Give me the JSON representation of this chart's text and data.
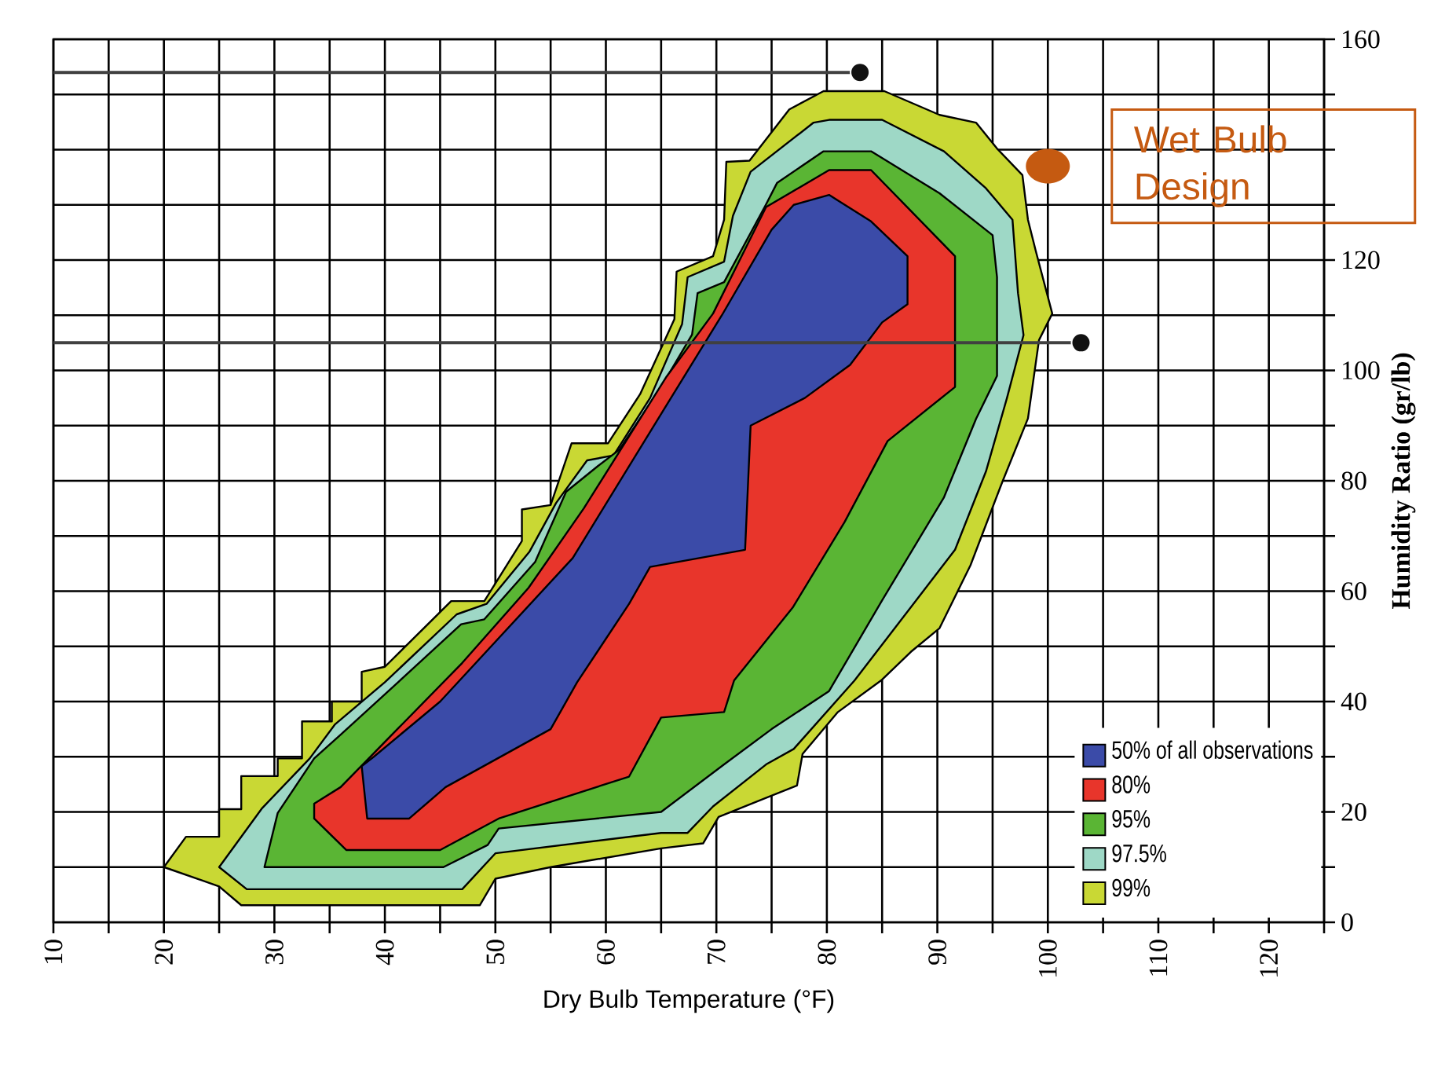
{
  "chart_data": {
    "type": "area",
    "xlabel": "Dry Bulb Temperature (°F)",
    "ylabel": "Humidity Ratio (gr/lb)",
    "xlim": [
      10,
      125
    ],
    "ylim": [
      0,
      160
    ],
    "xticks": [
      10,
      {
        "value": 15,
        "label": null
      },
      20,
      {
        "value": 25,
        "label": null
      },
      30,
      {
        "value": 35,
        "label": null
      },
      40,
      {
        "value": 45,
        "label": null
      },
      50,
      {
        "value": 55,
        "label": null
      },
      60,
      {
        "value": 65,
        "label": null
      },
      70,
      {
        "value": 75,
        "label": null
      },
      80,
      {
        "value": 85,
        "label": null
      },
      90,
      {
        "value": 95,
        "label": null
      },
      100,
      {
        "value": 105,
        "label": null
      },
      110,
      {
        "value": 115,
        "label": null
      },
      120,
      {
        "value": 125,
        "label": null
      }
    ],
    "yticks": [
      0,
      {
        "value": 10,
        "label": null
      },
      20,
      {
        "value": 30,
        "label": null
      },
      40,
      {
        "value": 50,
        "label": null
      },
      60,
      {
        "value": 70,
        "label": null
      },
      80,
      {
        "value": 90,
        "label": null
      },
      100,
      {
        "value": 110,
        "label": null
      },
      120,
      {
        "value": 130,
        "label": null
      },
      {
        "value": 140,
        "label": null
      },
      {
        "value": 150,
        "label": null
      },
      160
    ],
    "grid": true,
    "legend": "bottom right",
    "series": [
      {
        "name": "99%",
        "color": "#c9d834",
        "x": [
          20,
          22,
          25,
          25,
          27,
          27,
          30.3,
          30.3,
          32.5,
          32.5,
          35.2,
          35.2,
          37.9,
          37.9,
          40,
          46,
          49,
          52.4,
          52.4,
          55,
          56.9,
          60.2,
          63.1,
          66.2,
          66.4,
          69.7,
          70.7,
          70.9,
          73,
          76.6,
          79.7,
          85.2,
          90.2,
          93.5,
          95.4,
          97.7,
          98.2,
          98.9,
          100.4,
          99.2,
          98.2,
          95.9,
          93,
          90.2,
          87.6,
          84.9,
          81,
          77.8,
          77.3,
          70.2,
          68.8,
          65,
          55,
          50,
          48.6,
          27,
          25
        ],
        "values": [
          10,
          15.5,
          15.5,
          20.5,
          20.5,
          26.5,
          26.5,
          29.7,
          29.7,
          36.4,
          36.4,
          40,
          40,
          45.4,
          46.3,
          58.2,
          58.2,
          69.1,
          74.8,
          75.6,
          86.8,
          86.8,
          95.7,
          109.3,
          117.9,
          120.7,
          127.3,
          137.8,
          138,
          147.3,
          150.6,
          150.6,
          146.3,
          144.9,
          140.2,
          135.4,
          127.3,
          121.7,
          110.3,
          105.5,
          91.3,
          79.9,
          64.7,
          53.3,
          49,
          43.8,
          38.1,
          30.5,
          24.8,
          19.1,
          14.3,
          13.4,
          10,
          7.9,
          3.1,
          3.1,
          6.5
        ]
      },
      {
        "name": "97.5%",
        "color": "#9ed8c6",
        "x": [
          25,
          28.9,
          33.2,
          35.5,
          40,
          46.5,
          49.2,
          53.1,
          55.5,
          58.3,
          60.7,
          64,
          66.9,
          67.4,
          70.7,
          71.5,
          73.1,
          78.8,
          80.2,
          85,
          90.6,
          94.4,
          96.8,
          97.3,
          97.8,
          96.3,
          94.4,
          91.6,
          82.5,
          77,
          74.5,
          69.7,
          67.4,
          65,
          50,
          47,
          27.5
        ],
        "values": [
          10,
          20.7,
          29.7,
          35.9,
          43.5,
          55.8,
          57.7,
          67.2,
          76,
          83.7,
          84.6,
          95,
          108.4,
          116.9,
          119.7,
          128,
          136,
          144.9,
          145.4,
          145.4,
          139.7,
          133,
          127.3,
          114,
          106.4,
          95,
          81.7,
          67.5,
          43.8,
          31.4,
          28.6,
          21,
          16.2,
          16.2,
          12.5,
          6,
          6
        ]
      },
      {
        "name": "95%",
        "color": "#5ab534",
        "x": [
          29.1,
          30.3,
          33.6,
          36,
          41.2,
          46.9,
          49,
          53.6,
          56.4,
          59.3,
          61.2,
          65,
          67.8,
          68.3,
          70.7,
          74.5,
          75.5,
          79.7,
          84,
          90.2,
          95,
          95.4,
          95.4,
          93.5,
          90.6,
          84.9,
          80.2,
          75,
          70.7,
          65,
          50.3,
          49.3,
          45.3
        ],
        "values": [
          10,
          19.8,
          29.7,
          34,
          43.5,
          54,
          54.9,
          65.3,
          78,
          82.7,
          85.6,
          97,
          106.5,
          114,
          116,
          130.1,
          134,
          139.7,
          139.7,
          132.1,
          124.5,
          116.9,
          99,
          91.2,
          77,
          58,
          41.9,
          35,
          28.6,
          20,
          17,
          14,
          10
        ]
      },
      {
        "name": "80%",
        "color": "#e8352b",
        "x": [
          33.6,
          33.6,
          36,
          47,
          53,
          58,
          65.5,
          69.7,
          74.5,
          80.2,
          84,
          91.6,
          91.6,
          85.5,
          81.6,
          76.9,
          71.6,
          70.7,
          65,
          62.1,
          50.3,
          45,
          36.5
        ],
        "values": [
          18.8,
          21.5,
          24.5,
          47,
          60.6,
          75,
          98.9,
          110.3,
          129.6,
          136.3,
          136.3,
          120.7,
          97,
          87.2,
          72.5,
          57,
          43.8,
          38.1,
          37.1,
          26.4,
          18.8,
          13.1,
          13.1
        ]
      },
      {
        "name": "50% of all observations",
        "color": "#3b4ba8",
        "x": [
          38.4,
          42.2,
          45.5,
          55,
          57.4,
          62.1,
          64,
          72.6,
          73.1,
          78,
          82.1,
          85,
          87.3,
          87.3,
          84,
          80.2,
          77,
          75,
          70.5,
          66.5,
          57,
          45,
          39,
          37.9
        ],
        "values": [
          18.8,
          18.8,
          24.5,
          35,
          43.5,
          57.7,
          64.4,
          67.5,
          90,
          95,
          101,
          108.7,
          112,
          120.7,
          127,
          131.8,
          130,
          125.5,
          110,
          97,
          66,
          40,
          30,
          28.3
        ]
      },
      {
        "type": "line",
        "color": "#404040",
        "x": [
          10,
          83
        ],
        "values": [
          154,
          154
        ]
      },
      {
        "type": "line",
        "color": "#404040",
        "x": [
          10,
          103
        ],
        "values": [
          105,
          105
        ]
      },
      {
        "type": "scatter",
        "color": "#111111",
        "marker": "circle",
        "x": [
          83,
          103
        ],
        "values": [
          154,
          105
        ]
      }
    ],
    "annotations": [
      {
        "text": "Wet Bulb Design",
        "x": 100,
        "y": 137
      }
    ]
  }
}
